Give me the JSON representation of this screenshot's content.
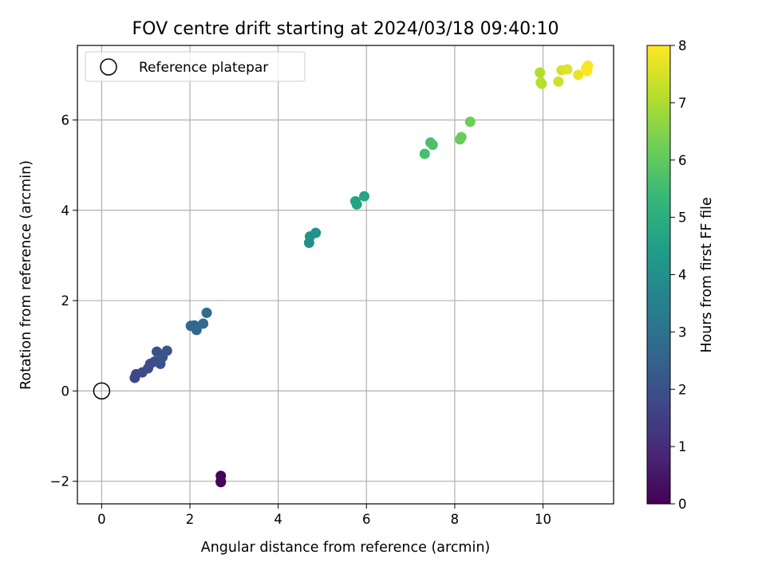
{
  "chart_data": {
    "type": "scatter",
    "title": "FOV centre drift starting at 2024/03/18 09:40:10",
    "xlabel": "Angular distance from reference (arcmin)",
    "ylabel": "Rotation from reference (arcmin)",
    "xlim": [
      -0.55,
      11.6
    ],
    "ylim": [
      -2.5,
      7.65
    ],
    "x_ticks": [
      0,
      2,
      4,
      6,
      8,
      10
    ],
    "y_ticks": [
      -2,
      0,
      2,
      4,
      6
    ],
    "x_tick_labels": [
      "0",
      "2",
      "4",
      "6",
      "8",
      "10"
    ],
    "y_tick_labels": [
      "−2",
      "0",
      "2",
      "4",
      "6"
    ],
    "grid": true,
    "legend": {
      "placement": "upper-left",
      "entries": [
        "Reference platepar"
      ]
    },
    "reference_point": {
      "x": 0,
      "y": 0,
      "label": "Reference platepar"
    },
    "colorbar": {
      "label": "Hours from first FF file",
      "range": [
        0,
        8
      ],
      "ticks": [
        0,
        1,
        2,
        3,
        4,
        5,
        6,
        7,
        8
      ],
      "tick_labels": [
        "0",
        "1",
        "2",
        "3",
        "4",
        "5",
        "6",
        "7",
        "8"
      ],
      "colormap": "viridis"
    },
    "colormap_stops": [
      "#440154",
      "#482878",
      "#3e4989",
      "#31688e",
      "#26828e",
      "#1f9e89",
      "#35b779",
      "#6ece58",
      "#b5de2b",
      "#fde725"
    ],
    "points": [
      {
        "x": 2.7,
        "y": -2.0,
        "t": 0.0
      },
      {
        "x": 2.7,
        "y": -2.02,
        "t": 0.05
      },
      {
        "x": 2.7,
        "y": -1.88,
        "t": 0.1
      },
      {
        "x": 0.75,
        "y": 0.29,
        "t": 1.7
      },
      {
        "x": 0.78,
        "y": 0.37,
        "t": 1.75
      },
      {
        "x": 0.92,
        "y": 0.41,
        "t": 1.8
      },
      {
        "x": 1.05,
        "y": 0.5,
        "t": 1.85
      },
      {
        "x": 1.1,
        "y": 0.6,
        "t": 1.9
      },
      {
        "x": 1.2,
        "y": 0.65,
        "t": 1.95
      },
      {
        "x": 1.25,
        "y": 0.87,
        "t": 2.0
      },
      {
        "x": 1.33,
        "y": 0.6,
        "t": 2.05
      },
      {
        "x": 1.38,
        "y": 0.75,
        "t": 2.1
      },
      {
        "x": 1.48,
        "y": 0.89,
        "t": 2.15
      },
      {
        "x": 2.02,
        "y": 1.44,
        "t": 2.6
      },
      {
        "x": 2.1,
        "y": 1.45,
        "t": 2.65
      },
      {
        "x": 2.15,
        "y": 1.35,
        "t": 2.7
      },
      {
        "x": 2.3,
        "y": 1.49,
        "t": 2.75
      },
      {
        "x": 2.38,
        "y": 1.73,
        "t": 2.8
      },
      {
        "x": 4.7,
        "y": 3.28,
        "t": 4.0
      },
      {
        "x": 4.72,
        "y": 3.42,
        "t": 4.05
      },
      {
        "x": 4.85,
        "y": 3.5,
        "t": 4.1
      },
      {
        "x": 5.75,
        "y": 4.2,
        "t": 4.6
      },
      {
        "x": 5.78,
        "y": 4.13,
        "t": 4.65
      },
      {
        "x": 5.95,
        "y": 4.31,
        "t": 4.7
      },
      {
        "x": 7.32,
        "y": 5.25,
        "t": 5.6
      },
      {
        "x": 7.45,
        "y": 5.5,
        "t": 5.65
      },
      {
        "x": 7.5,
        "y": 5.45,
        "t": 5.7
      },
      {
        "x": 8.12,
        "y": 5.57,
        "t": 6.1
      },
      {
        "x": 8.15,
        "y": 5.62,
        "t": 6.15
      },
      {
        "x": 8.35,
        "y": 5.96,
        "t": 6.2
      },
      {
        "x": 9.93,
        "y": 7.05,
        "t": 7.05
      },
      {
        "x": 9.95,
        "y": 6.83,
        "t": 7.1
      },
      {
        "x": 9.97,
        "y": 6.8,
        "t": 7.12
      },
      {
        "x": 10.35,
        "y": 6.85,
        "t": 7.4
      },
      {
        "x": 10.42,
        "y": 7.1,
        "t": 7.5
      },
      {
        "x": 10.55,
        "y": 7.12,
        "t": 7.6
      },
      {
        "x": 10.8,
        "y": 7.0,
        "t": 7.75
      },
      {
        "x": 10.98,
        "y": 7.15,
        "t": 7.9
      },
      {
        "x": 11.02,
        "y": 7.2,
        "t": 7.95
      },
      {
        "x": 11.0,
        "y": 7.08,
        "t": 8.0
      }
    ]
  }
}
